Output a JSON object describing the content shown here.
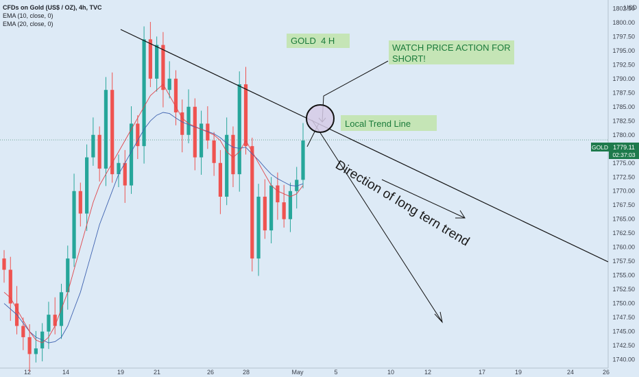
{
  "header": {
    "title": "CFDs on Gold (US$ / OZ), 4h, TVC",
    "indicators": [
      "EMA (10, close, 0)",
      "EMA (20, close, 0)"
    ]
  },
  "price_axis": {
    "currency": "USD",
    "ticks": [
      "1802.50",
      "1800.00",
      "1797.50",
      "1795.00",
      "1792.50",
      "1790.00",
      "1787.50",
      "1785.00",
      "1782.50",
      "1780.00",
      "1777.50",
      "1775.00",
      "1772.50",
      "1770.00",
      "1767.50",
      "1765.00",
      "1762.50",
      "1760.00",
      "1757.50",
      "1755.00",
      "1752.50",
      "1750.00",
      "1747.50",
      "1745.00",
      "1742.50",
      "1740.00"
    ],
    "last_price_symbol": "GOLD",
    "last_price": "1779.11",
    "countdown": "02:37:03"
  },
  "time_axis": {
    "ticks": [
      "12",
      "14",
      "19",
      "21",
      "26",
      "28",
      "May",
      "5",
      "10",
      "12",
      "17",
      "19",
      "24",
      "26"
    ]
  },
  "annotations": {
    "title_box": "GOLD  4 H",
    "callout_lines": [
      "WATCH PRICE ACTION FOR",
      "SHORT!"
    ],
    "trendline_label": "Local Trend Line",
    "direction_text": "Direction of long tern trend"
  },
  "colors": {
    "background": "#ddeaf6",
    "up_candle": "#26a69a",
    "down_candle": "#ef5350",
    "ema10": "#e0444a",
    "ema20": "#3f63b0",
    "note_fill": "#c5e5b6",
    "note_text": "#1a7a3a",
    "price_label": "#1e7a4c",
    "circle_fill": "#d6cbe6"
  },
  "chart_data": {
    "type": "candlestick",
    "title": "CFDs on Gold (US$ / OZ), 4h, TVC",
    "ylim": [
      1738.5,
      1804
    ],
    "y_ticks": [
      1740,
      1742.5,
      1745,
      1747.5,
      1750,
      1752.5,
      1755,
      1757.5,
      1760,
      1762.5,
      1765,
      1767.5,
      1770,
      1772.5,
      1775,
      1777.5,
      1780,
      1782.5,
      1785,
      1787.5,
      1790,
      1792.5,
      1795,
      1797.5,
      1800,
      1802.5
    ],
    "x_tick_labels": [
      "12",
      "14",
      "19",
      "21",
      "26",
      "28",
      "May",
      "5",
      "10",
      "12",
      "17",
      "19",
      "24",
      "26"
    ],
    "last_price": 1779.11,
    "series": [
      {
        "name": "EMA (10, close, 0)",
        "type": "line",
        "values": [
          1752,
          1751,
          1749,
          1747,
          1745,
          1743.5,
          1743,
          1744,
          1746,
          1749,
          1752,
          1756,
          1760,
          1764,
          1768,
          1771,
          1773,
          1775,
          1777,
          1779,
          1781,
          1783,
          1785,
          1787,
          1788,
          1789,
          1787,
          1785,
          1783,
          1782,
          1781.5,
          1781,
          1780.5,
          1780,
          1779,
          1777,
          1776,
          1777,
          1779,
          1777,
          1775,
          1773,
          1771,
          1770,
          1769.5,
          1769,
          1769.5,
          1771
        ]
      },
      {
        "name": "EMA (20, close, 0)",
        "type": "line",
        "values": [
          1750,
          1749,
          1748,
          1746.5,
          1745,
          1744,
          1743.5,
          1743,
          1743.2,
          1744,
          1746,
          1749,
          1752,
          1756,
          1760,
          1764,
          1767,
          1770,
          1773,
          1775,
          1777,
          1779,
          1781,
          1782.5,
          1783.5,
          1784,
          1783.8,
          1783,
          1782.3,
          1781.8,
          1781.4,
          1781,
          1780.6,
          1780.2,
          1779.5,
          1778.5,
          1777.8,
          1777.6,
          1777.8,
          1776.6,
          1775.5,
          1774.2,
          1773,
          1772.2,
          1771.6,
          1771,
          1770.9,
          1771.3
        ]
      },
      {
        "name": "candles_close",
        "type": "candlestick",
        "values": [
          1756,
          1750,
          1746,
          1744,
          1741,
          1742,
          1745,
          1748,
          1746,
          1752,
          1758,
          1770,
          1766,
          1776,
          1780,
          1774,
          1788,
          1773,
          1775,
          1771,
          1782,
          1778,
          1797,
          1790,
          1796,
          1788,
          1790,
          1784,
          1780,
          1785,
          1776,
          1782,
          1779,
          1775,
          1769,
          1780,
          1773,
          1789,
          1778,
          1758,
          1769,
          1763,
          1771,
          1768,
          1765,
          1770,
          1772,
          1779
        ]
      }
    ]
  }
}
